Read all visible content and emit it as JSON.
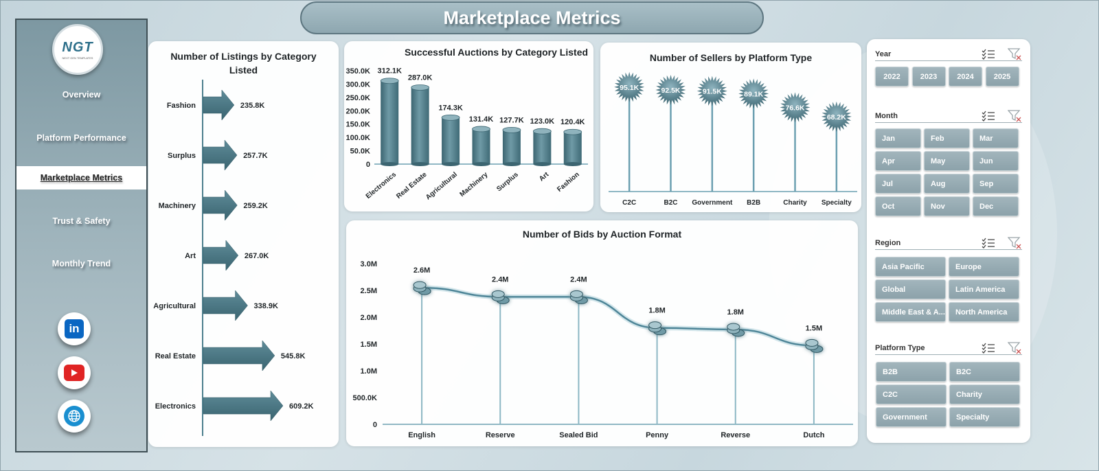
{
  "header": {
    "title": "Marketplace Metrics"
  },
  "sidebar": {
    "logo_text": "NGT",
    "logo_subtext": "NEXT GEN TEMPLATES",
    "items": [
      {
        "label": "Overview",
        "active": false
      },
      {
        "label": "Platform Performance",
        "active": false
      },
      {
        "label": "Marketplace Metrics",
        "active": true
      },
      {
        "label": "Trust & Safety",
        "active": false
      },
      {
        "label": "Monthly Trend",
        "active": false
      }
    ],
    "social": [
      {
        "icon": "linkedin-icon",
        "text": "in",
        "color": "#0a66c2"
      },
      {
        "icon": "youtube-icon",
        "color": "#e02424"
      },
      {
        "icon": "globe-icon",
        "color": "#1a8fd0"
      }
    ]
  },
  "colors": {
    "accent": "#4f7d8a",
    "accent_dark": "#3c6571",
    "line": "#6b9fb0",
    "sidebar": "#8fa7b0"
  },
  "chart_data": [
    {
      "id": "listings",
      "type": "bar",
      "orientation": "horizontal",
      "title": "Number of Listings by Category Listed",
      "categories": [
        "Fashion",
        "Surplus",
        "Machinery",
        "Art",
        "Agricultural",
        "Real Estate",
        "Electronics"
      ],
      "values": [
        235.8,
        257.7,
        259.2,
        267.0,
        338.9,
        545.8,
        609.2
      ],
      "value_labels": [
        "235.8K",
        "257.7K",
        "259.2K",
        "267.0K",
        "338.9K",
        "545.8K",
        "609.2K"
      ],
      "unit": "K"
    },
    {
      "id": "auctions",
      "type": "bar",
      "title": "Successful Auctions by Category Listed",
      "categories": [
        "Electronics",
        "Real Estate",
        "Agricultural",
        "Machinery",
        "Surplus",
        "Art",
        "Fashion"
      ],
      "values": [
        312.1,
        287.0,
        174.3,
        131.4,
        127.7,
        123.0,
        120.4
      ],
      "value_labels": [
        "312.1K",
        "287.0K",
        "174.3K",
        "131.4K",
        "127.7K",
        "123.0K",
        "120.4K"
      ],
      "ylim": [
        0,
        350
      ],
      "yticks": [
        0,
        50,
        100,
        150,
        200,
        250,
        300,
        350
      ],
      "ytick_labels": [
        "0",
        "50.0K",
        "100.0K",
        "150.0K",
        "200.0K",
        "250.0K",
        "300.0K",
        "350.0K"
      ]
    },
    {
      "id": "sellers",
      "type": "lollipop",
      "title": "Number of Sellers by Platform Type",
      "categories": [
        "C2C",
        "B2C",
        "Government",
        "B2B",
        "Charity",
        "Specialty"
      ],
      "values": [
        95.1,
        92.5,
        91.5,
        89.1,
        76.6,
        68.2
      ],
      "value_labels": [
        "95.1K",
        "92.5K",
        "91.5K",
        "89.1K",
        "76.6K",
        "68.2K"
      ],
      "ylim": [
        0,
        100
      ]
    },
    {
      "id": "bids",
      "type": "line",
      "title": "Number of Bids by Auction Format",
      "categories": [
        "English",
        "Reserve",
        "Sealed Bid",
        "Penny",
        "Reverse",
        "Dutch"
      ],
      "values": [
        2.55,
        2.38,
        2.38,
        1.8,
        1.77,
        1.47
      ],
      "value_labels": [
        "2.6M",
        "2.4M",
        "2.4M",
        "1.8M",
        "1.8M",
        "1.5M"
      ],
      "ylim": [
        0,
        3.0
      ],
      "yticks": [
        0,
        0.5,
        1.0,
        1.5,
        2.0,
        2.5,
        3.0
      ],
      "ytick_labels": [
        "0",
        "500.0K",
        "1.0M",
        "1.5M",
        "2.0M",
        "2.5M",
        "3.0M"
      ]
    }
  ],
  "slicers": {
    "year": {
      "title": "Year",
      "options": [
        "2022",
        "2023",
        "2024",
        "2025"
      ]
    },
    "month": {
      "title": "Month",
      "options": [
        "Jan",
        "Feb",
        "Mar",
        "Apr",
        "May",
        "Jun",
        "Jul",
        "Aug",
        "Sep",
        "Oct",
        "Nov",
        "Dec"
      ]
    },
    "region": {
      "title": "Region",
      "options": [
        "Asia Pacific",
        "Europe",
        "Global",
        "Latin America",
        "Middle East & A...",
        "North America"
      ]
    },
    "platform": {
      "title": "Platform Type",
      "options": [
        "B2B",
        "B2C",
        "C2C",
        "Charity",
        "Government",
        "Specialty"
      ]
    }
  }
}
